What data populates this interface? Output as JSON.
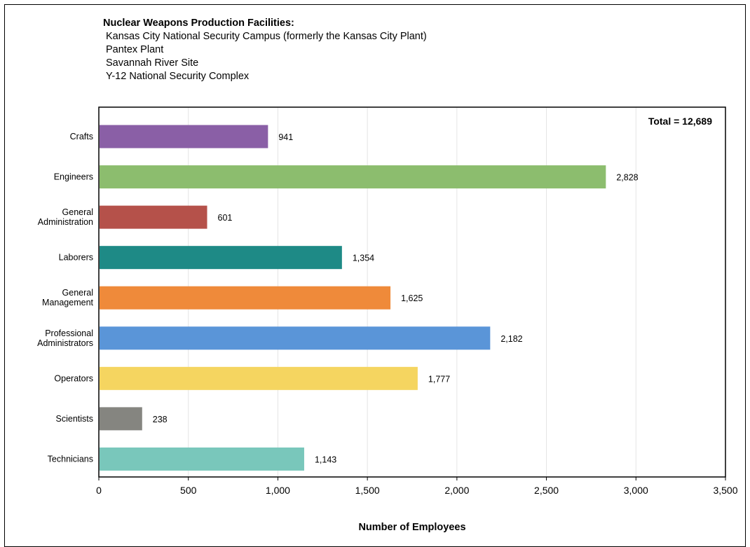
{
  "header": {
    "title": "Nuclear Weapons Production Facilities:",
    "facilities": [
      "Kansas City National Security Campus (formerly the Kansas City Plant)",
      "Pantex Plant",
      "Savannah River Site",
      "Y-12 National Security Complex"
    ]
  },
  "chart_data": {
    "type": "bar",
    "orientation": "horizontal",
    "categories": [
      [
        "Crafts"
      ],
      [
        "Engineers"
      ],
      [
        "General",
        "Administration"
      ],
      [
        "Laborers"
      ],
      [
        "General",
        "Management"
      ],
      [
        "Professional",
        "Administrators"
      ],
      [
        "Operators"
      ],
      [
        "Scientists"
      ],
      [
        "Technicians"
      ]
    ],
    "values": [
      941,
      2828,
      601,
      1354,
      1625,
      2182,
      1777,
      238,
      1143
    ],
    "value_labels": [
      "941",
      "2,828",
      "601",
      "1,354",
      "1,625",
      "2,182",
      "1,777",
      "238",
      "1,143"
    ],
    "colors": [
      "#8a5fa6",
      "#8cbd6e",
      "#b5514a",
      "#1e8a86",
      "#ef8a3a",
      "#5a95d8",
      "#f5d560",
      "#858580",
      "#79c7bb"
    ],
    "xlabel": "Number of Employees",
    "xlim": [
      0,
      3500
    ],
    "xticks": [
      0,
      500,
      1000,
      1500,
      2000,
      2500,
      3000,
      3500
    ],
    "xtick_labels": [
      "0",
      "500",
      "1,000",
      "1,500",
      "2,000",
      "2,500",
      "3,000",
      "3,500"
    ],
    "grid": "vertical",
    "annotation": "Total = 12,689"
  }
}
